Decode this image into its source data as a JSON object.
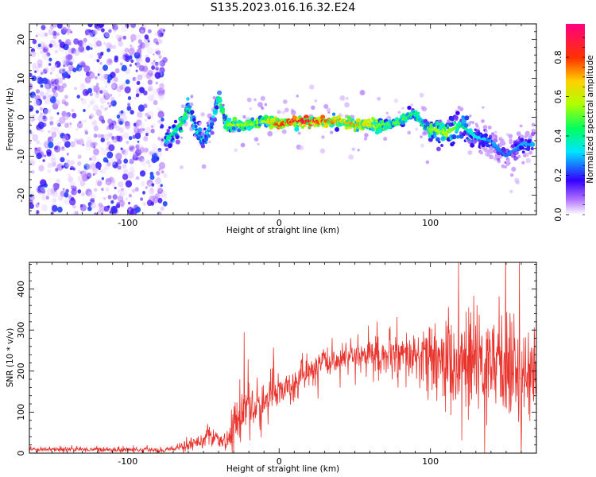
{
  "chart_data": [
    {
      "type": "heatmap",
      "title": "S135.2023.016.16.32.E24",
      "xlabel": "Height of straight line (km)",
      "ylabel": "Frequency (Hz)",
      "xlim": [
        -165,
        170
      ],
      "ylim": [
        -25,
        24
      ],
      "x_ticks": [
        -100,
        0,
        100
      ],
      "y_ticks": [
        20,
        10,
        0,
        -10,
        -20
      ],
      "colorbar": {
        "label": "Normalized spectral amplitude",
        "ticks": [
          "0.0",
          "0.2",
          "0.4",
          "0.6",
          "0.8"
        ],
        "range": [
          0,
          0.97
        ]
      },
      "signal_track": {
        "x": [
          -75,
          -70,
          -65,
          -60,
          -55,
          -50,
          -45,
          -40,
          -35,
          -30,
          -20,
          -10,
          0,
          10,
          20,
          30,
          40,
          50,
          60,
          70,
          80,
          90,
          95,
          100,
          110,
          120,
          130,
          140,
          150,
          160,
          168
        ],
        "freq": [
          -6,
          -4,
          -2,
          3,
          -3,
          -6,
          -2,
          5,
          -2,
          -2,
          -2,
          -1,
          -2,
          -1,
          -1,
          -1,
          -1,
          -2,
          -2,
          -2,
          -1,
          1,
          -2,
          -3,
          -4,
          -2,
          -5,
          -6,
          -10,
          -7,
          -7
        ],
        "amplitude": [
          0.4,
          0.45,
          0.5,
          0.45,
          0.35,
          0.4,
          0.3,
          0.45,
          0.5,
          0.6,
          0.55,
          0.6,
          0.85,
          0.9,
          0.9,
          0.8,
          0.7,
          0.75,
          0.65,
          0.55,
          0.5,
          0.45,
          0.45,
          0.55,
          0.6,
          0.45,
          0.35,
          0.3,
          0.25,
          0.3,
          0.3
        ]
      }
    },
    {
      "type": "line",
      "xlabel": "Height of straight line (km)",
      "ylabel": "SNR (10 * v/v)",
      "xlim": [
        -165,
        170
      ],
      "ylim": [
        0,
        465
      ],
      "x_ticks": [
        -100,
        0,
        100
      ],
      "y_ticks": [
        0,
        100,
        200,
        300,
        400
      ],
      "color": "#e8332c",
      "envelope": {
        "x": [
          -165,
          -120,
          -80,
          -70,
          -60,
          -50,
          -45,
          -40,
          -35,
          -30,
          -25,
          -20,
          -15,
          -10,
          -5,
          0,
          10,
          20,
          30,
          40,
          50,
          60,
          70,
          80,
          90,
          100,
          110,
          120,
          130,
          140,
          150,
          160,
          170
        ],
        "y": [
          10,
          9,
          8,
          10,
          20,
          35,
          40,
          30,
          25,
          60,
          110,
          130,
          100,
          120,
          140,
          150,
          170,
          200,
          220,
          230,
          235,
          240,
          235,
          230,
          235,
          230,
          220,
          215,
          220,
          225,
          215,
          200,
          190
        ],
        "noise": [
          4,
          4,
          4,
          5,
          10,
          15,
          15,
          10,
          12,
          40,
          60,
          70,
          50,
          35,
          35,
          25,
          25,
          25,
          25,
          20,
          25,
          30,
          35,
          40,
          45,
          55,
          70,
          80,
          90,
          95,
          100,
          90,
          60
        ]
      }
    }
  ]
}
